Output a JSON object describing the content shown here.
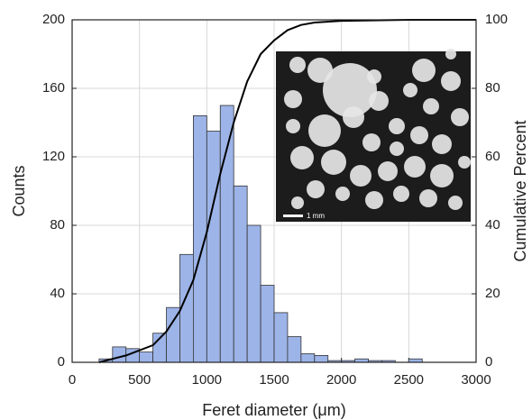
{
  "chart_data": {
    "type": "histogram",
    "xlabel": "Feret diameter (μm)",
    "ylabel": "Counts",
    "y2label": "Cumulative Percent",
    "bins": [
      200,
      300,
      400,
      500,
      600,
      700,
      800,
      900,
      1000,
      1100,
      1200,
      1300,
      1400,
      1500,
      1600,
      1700,
      1800,
      1900,
      2000,
      2100,
      2200,
      2300,
      2400,
      2500,
      2600
    ],
    "counts": [
      2,
      9,
      8,
      6,
      17,
      32,
      63,
      144,
      135,
      150,
      103,
      80,
      45,
      29,
      15,
      5,
      4,
      1,
      1,
      2,
      1,
      1,
      0,
      2
    ],
    "color": "#9db4e8",
    "cumulative": {
      "axis": "y2",
      "color": "#000000",
      "x": [
        200,
        400,
        600,
        700,
        800,
        900,
        1000,
        1100,
        1200,
        1300,
        1400,
        1500,
        1600,
        1700,
        1800,
        2000,
        2500,
        3000
      ],
      "values": [
        0,
        2,
        5,
        9,
        15,
        24,
        38,
        55,
        70,
        82,
        90,
        94,
        97,
        98.5,
        99.2,
        99.7,
        100,
        100
      ]
    },
    "xlim": [
      0,
      3000
    ],
    "xticks": [
      0,
      500,
      1000,
      1500,
      2000,
      2500,
      3000
    ],
    "ylim": [
      0,
      200
    ],
    "yticks": [
      0,
      40,
      80,
      120,
      160,
      200
    ],
    "y2lim": [
      0,
      100
    ],
    "y2ticks": [
      0,
      20,
      40,
      60,
      80,
      100
    ],
    "grid": true,
    "inset": {
      "scale_label": "1 mm"
    }
  }
}
